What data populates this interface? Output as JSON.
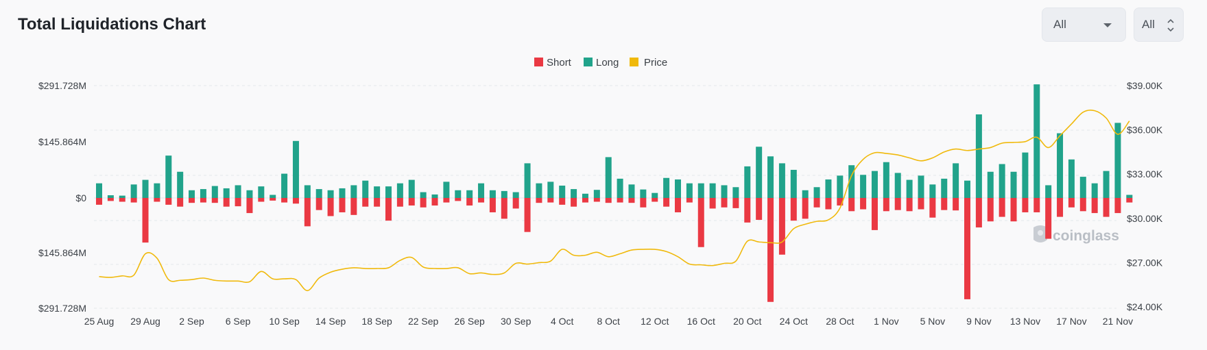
{
  "header": {
    "title": "Total Liquidations Chart",
    "select_range": "All",
    "select_period": "All"
  },
  "watermark": "coinglass",
  "colors": {
    "short": "#ea3943",
    "long": "#21a38b",
    "price": "#f0b90b"
  },
  "chart_data": {
    "type": "bar",
    "title": "Total Liquidations Chart",
    "legend": [
      "Short",
      "Long",
      "Price"
    ],
    "y_left_ticks": [
      "$291.728M",
      "$145.864M",
      "$0",
      "$145.864M",
      "$291.728M"
    ],
    "y_left_range": [
      -291.728,
      291.728
    ],
    "y_right_ticks": [
      "$39.00K",
      "$36.00K",
      "$33.00K",
      "$30.00K",
      "$27.00K",
      "$24.00K"
    ],
    "y_right_range": [
      24000,
      39000
    ],
    "x_ticks": [
      "25 Aug",
      "29 Aug",
      "2 Sep",
      "6 Sep",
      "10 Sep",
      "14 Sep",
      "18 Sep",
      "22 Sep",
      "26 Sep",
      "30 Sep",
      "4 Oct",
      "8 Oct",
      "12 Oct",
      "16 Oct",
      "20 Oct",
      "24 Oct",
      "28 Oct",
      "1 Nov",
      "5 Nov",
      "9 Nov",
      "13 Nov",
      "17 Nov",
      "21 Nov"
    ],
    "categories": [
      "25 Aug",
      "26 Aug",
      "27 Aug",
      "28 Aug",
      "29 Aug",
      "30 Aug",
      "31 Aug",
      "1 Sep",
      "2 Sep",
      "3 Sep",
      "4 Sep",
      "5 Sep",
      "6 Sep",
      "7 Sep",
      "8 Sep",
      "9 Sep",
      "10 Sep",
      "11 Sep",
      "12 Sep",
      "13 Sep",
      "14 Sep",
      "15 Sep",
      "16 Sep",
      "17 Sep",
      "18 Sep",
      "19 Sep",
      "20 Sep",
      "21 Sep",
      "22 Sep",
      "23 Sep",
      "24 Sep",
      "25 Sep",
      "26 Sep",
      "27 Sep",
      "28 Sep",
      "29 Sep",
      "30 Sep",
      "1 Oct",
      "2 Oct",
      "3 Oct",
      "4 Oct",
      "5 Oct",
      "6 Oct",
      "7 Oct",
      "8 Oct",
      "9 Oct",
      "10 Oct",
      "11 Oct",
      "12 Oct",
      "13 Oct",
      "14 Oct",
      "15 Oct",
      "16 Oct",
      "17 Oct",
      "18 Oct",
      "19 Oct",
      "20 Oct",
      "21 Oct",
      "22 Oct",
      "23 Oct",
      "24 Oct",
      "25 Oct",
      "26 Oct",
      "27 Oct",
      "28 Oct",
      "29 Oct",
      "30 Oct",
      "31 Oct",
      "1 Nov",
      "2 Nov",
      "3 Nov",
      "4 Nov",
      "5 Nov",
      "6 Nov",
      "7 Nov",
      "8 Nov",
      "9 Nov",
      "10 Nov",
      "11 Nov",
      "12 Nov",
      "13 Nov",
      "14 Nov",
      "15 Nov",
      "16 Nov",
      "17 Nov",
      "18 Nov",
      "19 Nov",
      "20 Nov",
      "21 Nov",
      "22 Nov"
    ],
    "series": [
      {
        "name": "Long",
        "unit": "USD millions",
        "values": [
          38,
          7,
          6,
          35,
          47,
          38,
          110,
          68,
          20,
          23,
          31,
          25,
          33,
          20,
          30,
          8,
          63,
          148,
          33,
          23,
          20,
          25,
          33,
          45,
          30,
          30,
          38,
          47,
          15,
          9,
          42,
          20,
          20,
          38,
          20,
          18,
          15,
          90,
          38,
          42,
          32,
          23,
          11,
          21,
          106,
          50,
          35,
          22,
          13,
          52,
          48,
          38,
          38,
          38,
          33,
          28,
          82,
          133,
          108,
          90,
          73,
          20,
          28,
          48,
          58,
          85,
          60,
          70,
          93,
          65,
          47,
          58,
          35,
          50,
          90,
          45,
          217,
          68,
          88,
          68,
          118,
          295,
          33,
          168,
          100,
          55,
          38,
          70,
          195,
          8
        ],
        "values_note": "positive liquidation volume above the $0 baseline"
      },
      {
        "name": "Short",
        "unit": "USD millions",
        "values": [
          18,
          8,
          10,
          12,
          118,
          10,
          18,
          23,
          13,
          12,
          13,
          23,
          22,
          40,
          10,
          7,
          12,
          15,
          75,
          32,
          48,
          38,
          45,
          23,
          23,
          60,
          23,
          20,
          25,
          20,
          12,
          8,
          20,
          12,
          38,
          55,
          28,
          90,
          13,
          12,
          18,
          23,
          12,
          10,
          13,
          12,
          13,
          25,
          10,
          23,
          38,
          12,
          130,
          28,
          25,
          27,
          65,
          58,
          275,
          150,
          60,
          55,
          25,
          30,
          20,
          35,
          30,
          85,
          35,
          32,
          35,
          30,
          52,
          32,
          33,
          268,
          78,
          62,
          50,
          62,
          38,
          38,
          108,
          50,
          25,
          35,
          40,
          50,
          40,
          12
        ],
        "values_note": "shown as downward bars below the $0 baseline"
      },
      {
        "name": "Price",
        "unit": "USD",
        "axis": "right",
        "values": [
          26050,
          26000,
          26100,
          26150,
          27600,
          27300,
          25850,
          25800,
          25850,
          25950,
          25800,
          25750,
          25750,
          25700,
          26400,
          25900,
          25900,
          25850,
          25100,
          25950,
          26350,
          26550,
          26650,
          26600,
          26600,
          26650,
          27150,
          27350,
          26700,
          26600,
          26600,
          26650,
          26250,
          26300,
          26200,
          26300,
          26950,
          26900,
          27000,
          27100,
          27900,
          27500,
          27500,
          27700,
          27400,
          27600,
          27850,
          27900,
          27900,
          27750,
          27400,
          26900,
          26850,
          26800,
          26950,
          27100,
          28450,
          28400,
          28350,
          28400,
          29300,
          29600,
          29800,
          29900,
          30700,
          32900,
          34000,
          34450,
          34400,
          34300,
          34100,
          33900,
          34100,
          34500,
          34700,
          34600,
          34700,
          34800,
          35100,
          35150,
          35200,
          35500,
          34800,
          35600,
          36400,
          37200,
          37300,
          36800,
          35700,
          36600
        ]
      }
    ],
    "ylabel": "",
    "xlabel": ""
  }
}
